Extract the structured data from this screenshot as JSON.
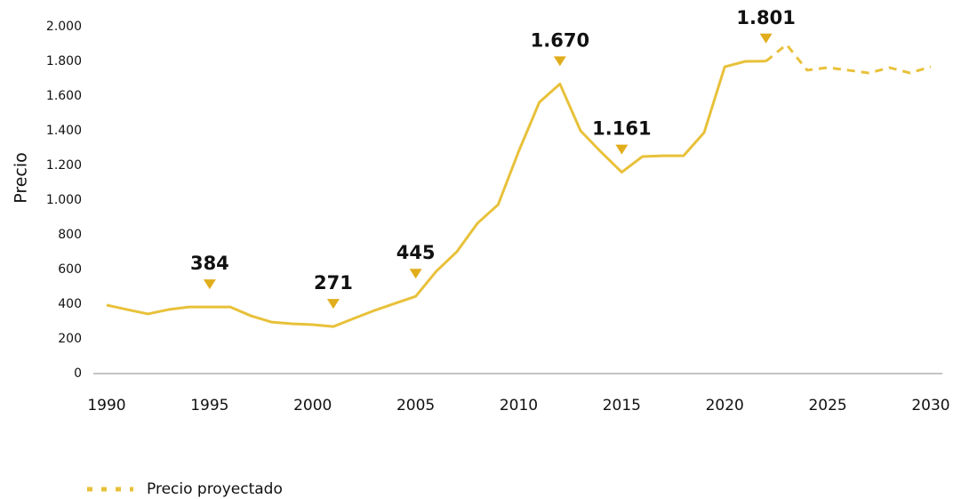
{
  "chart_data": {
    "type": "line",
    "y_label": "Precio",
    "xlim": [
      1990,
      2030
    ],
    "xticks": [
      1990,
      1995,
      2000,
      2005,
      2010,
      2015,
      2020,
      2025,
      2030
    ],
    "ylim": [
      0,
      2000
    ],
    "yticks": [
      0,
      200,
      400,
      600,
      800,
      {
        "value": 1000,
        "label": "1.000"
      },
      {
        "value": 1200,
        "label": "1.200"
      },
      {
        "value": 1400,
        "label": "1.400"
      },
      {
        "value": 1600,
        "label": "1.600"
      },
      {
        "value": 1800,
        "label": "1.800"
      },
      {
        "value": 2000,
        "label": "2.000"
      }
    ],
    "series": [
      {
        "color": "#e8c13a",
        "style": "solid",
        "x": [
          1990,
          1991,
          1992,
          1993,
          1994,
          1995,
          1996,
          1997,
          1998,
          1999,
          2000,
          2001,
          2002,
          2003,
          2004,
          2005,
          2006,
          2007,
          2008,
          2009,
          2010,
          2011,
          2012,
          2013,
          2014,
          2015,
          2016,
          2017,
          2018,
          2019,
          2020,
          2021,
          2022
        ],
        "values": [
          395,
          369,
          344,
          369,
          384,
          384,
          384,
          333,
          297,
          287,
          282,
          271,
          318,
          364,
          405,
          445,
          590,
          703,
          867,
          974,
          1282,
          1564,
          1670,
          1400,
          1277,
          1161,
          1251,
          1256,
          1256,
          1390,
          1769,
          1800,
          1801
        ]
      },
      {
        "name": "Precio proyectado",
        "color": "#e8c13a",
        "style": "dashed",
        "x": [
          2022,
          2023,
          2024,
          2025,
          2026,
          2027,
          2028,
          2029,
          2030
        ],
        "values": [
          1801,
          1897,
          1749,
          1764,
          1749,
          1733,
          1764,
          1733,
          1769
        ]
      }
    ],
    "annotations": [
      {
        "x": 1995,
        "label": "384"
      },
      {
        "x": 2001,
        "label": "271"
      },
      {
        "x": 2005,
        "label": "445"
      },
      {
        "x": 2012,
        "label": "1.670"
      },
      {
        "x": 2015,
        "label": "1.161"
      },
      {
        "x": 2022,
        "label": "1.801"
      }
    ],
    "annotation_color": "#e0ad1c"
  }
}
